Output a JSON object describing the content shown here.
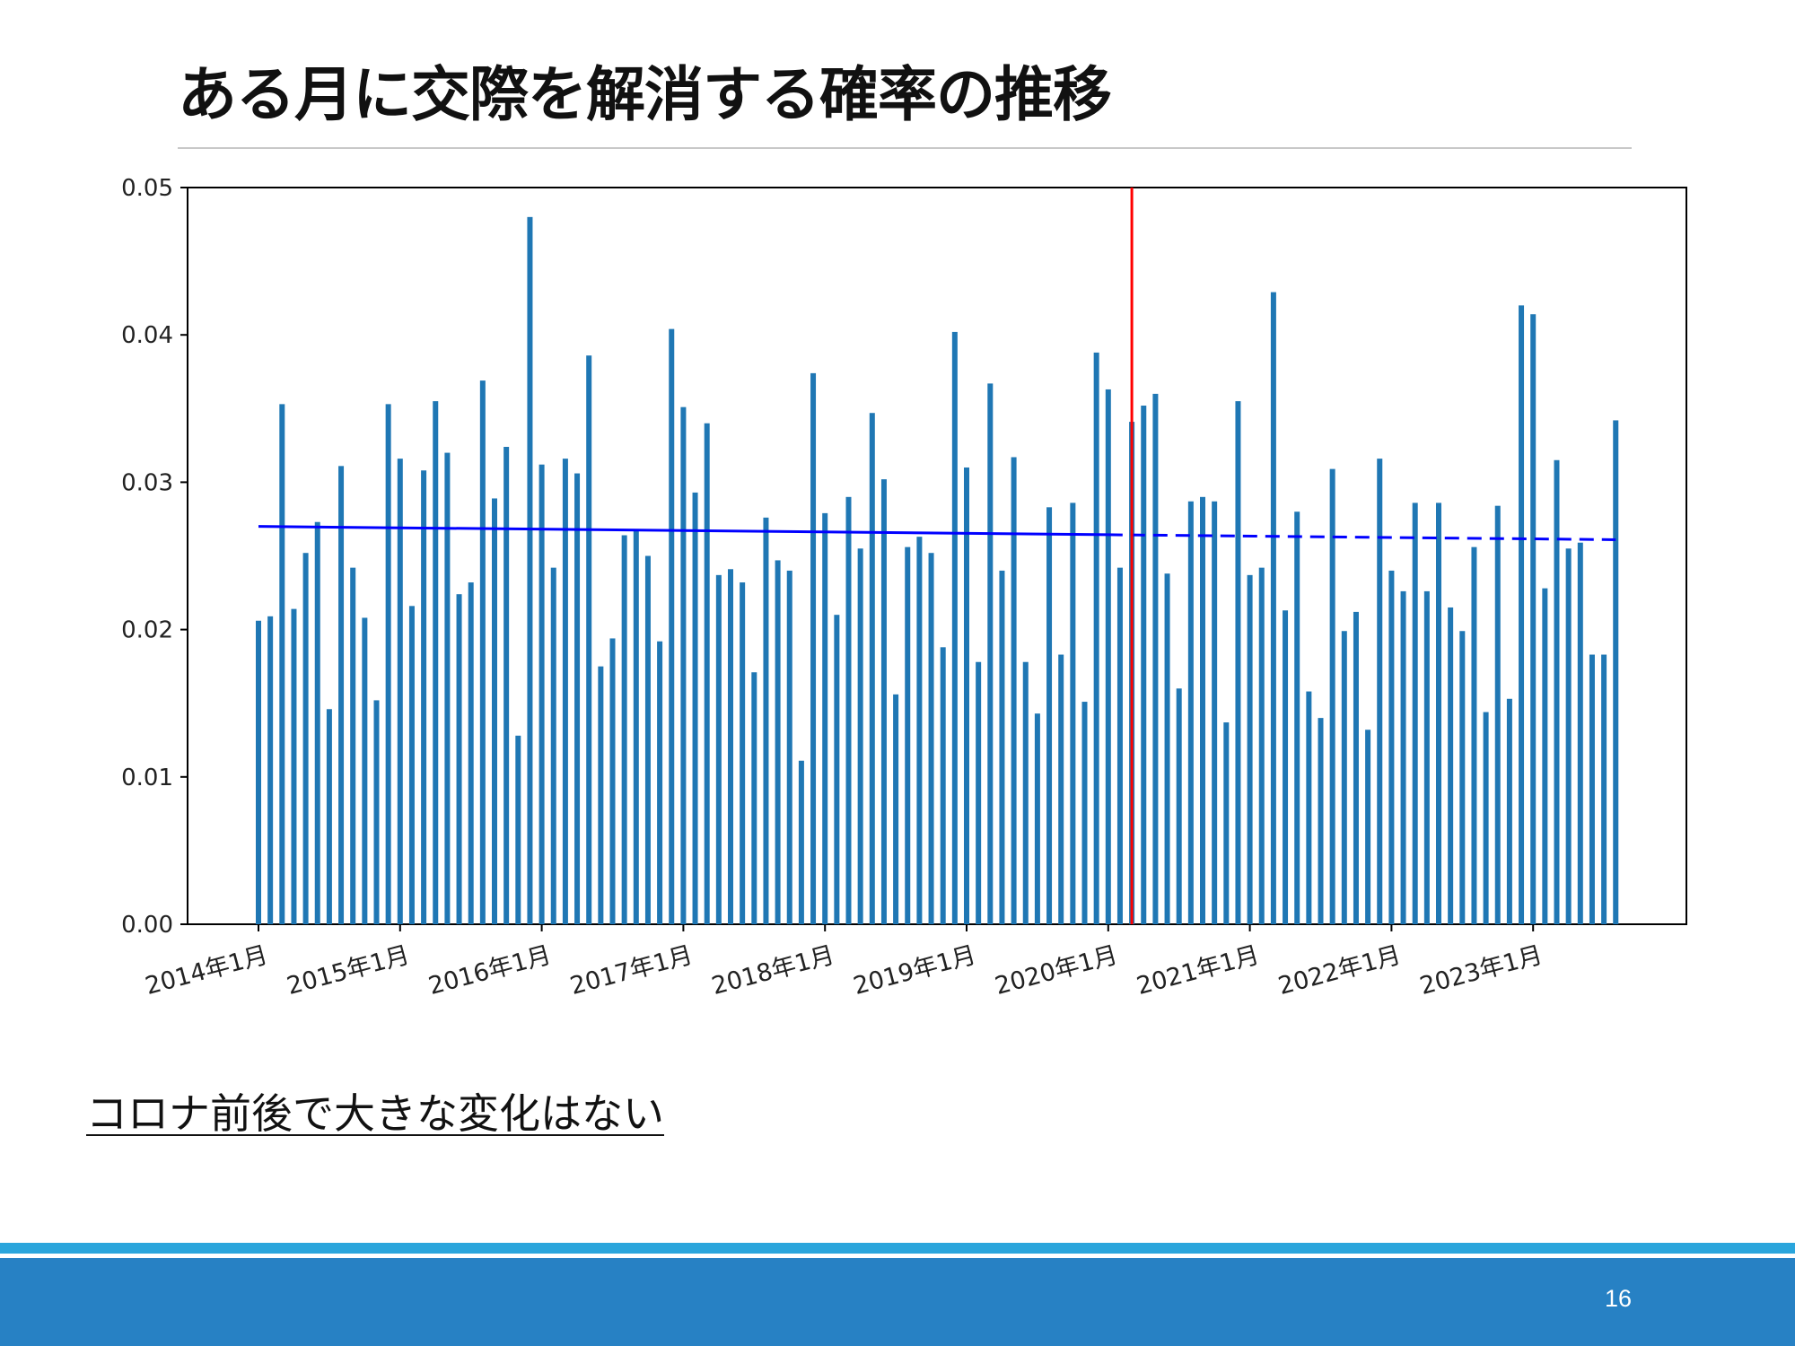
{
  "slide": {
    "title": "ある月に交際を解消する確率の推移",
    "caption": "コロナ前後で大きな変化はない",
    "page_number": "16"
  },
  "colors": {
    "bar": "#1f77b4",
    "trend": "#0000ff",
    "event_line": "#ff0000",
    "footer": "#2781c4",
    "footer_stripe": "#2aa5dc"
  },
  "chart_data": {
    "type": "bar",
    "ylim": [
      0,
      0.05
    ],
    "yticks": [
      "0.00",
      "0.01",
      "0.02",
      "0.03",
      "0.04",
      "0.05"
    ],
    "xtick_labels": [
      "2014年1月",
      "2015年1月",
      "2016年1月",
      "2017年1月",
      "2018年1月",
      "2019年1月",
      "2020年1月",
      "2021年1月",
      "2022年1月",
      "2023年1月"
    ],
    "start_month": "2014年1月",
    "values": [
      0.0206,
      0.0209,
      0.0353,
      0.0214,
      0.0252,
      0.0273,
      0.0146,
      0.0311,
      0.0242,
      0.0208,
      0.0152,
      0.0353,
      0.0316,
      0.0216,
      0.0308,
      0.0355,
      0.032,
      0.0224,
      0.0232,
      0.0369,
      0.0289,
      0.0324,
      0.0128,
      0.048,
      0.0312,
      0.0242,
      0.0316,
      0.0306,
      0.0386,
      0.0175,
      0.0194,
      0.0264,
      0.0267,
      0.025,
      0.0192,
      0.0404,
      0.0351,
      0.0293,
      0.034,
      0.0237,
      0.0241,
      0.0232,
      0.0171,
      0.0276,
      0.0247,
      0.024,
      0.0111,
      0.0374,
      0.0279,
      0.021,
      0.029,
      0.0255,
      0.0347,
      0.0302,
      0.0156,
      0.0256,
      0.0263,
      0.0252,
      0.0188,
      0.0402,
      0.031,
      0.0178,
      0.0367,
      0.024,
      0.0317,
      0.0178,
      0.0143,
      0.0283,
      0.0183,
      0.0286,
      0.0151,
      0.0388,
      0.0363,
      0.0242,
      0.0341,
      0.0352,
      0.036,
      0.0238,
      0.016,
      0.0287,
      0.029,
      0.0287,
      0.0137,
      0.0355,
      0.0237,
      0.0242,
      0.0429,
      0.0213,
      0.028,
      0.0158,
      0.014,
      0.0309,
      0.0199,
      0.0212,
      0.0132,
      0.0316,
      0.024,
      0.0226,
      0.0286,
      0.0226,
      0.0286,
      0.0215,
      0.0199,
      0.0256,
      0.0144,
      0.0284,
      0.0153,
      0.042,
      0.0414,
      0.0228,
      0.0315,
      0.0255,
      0.0259,
      0.0183,
      0.0183,
      0.0342
    ],
    "trend": {
      "start": 0.027,
      "end": 0.0261,
      "solid_until": "2020年1月"
    },
    "event_line": "2020年3月"
  }
}
